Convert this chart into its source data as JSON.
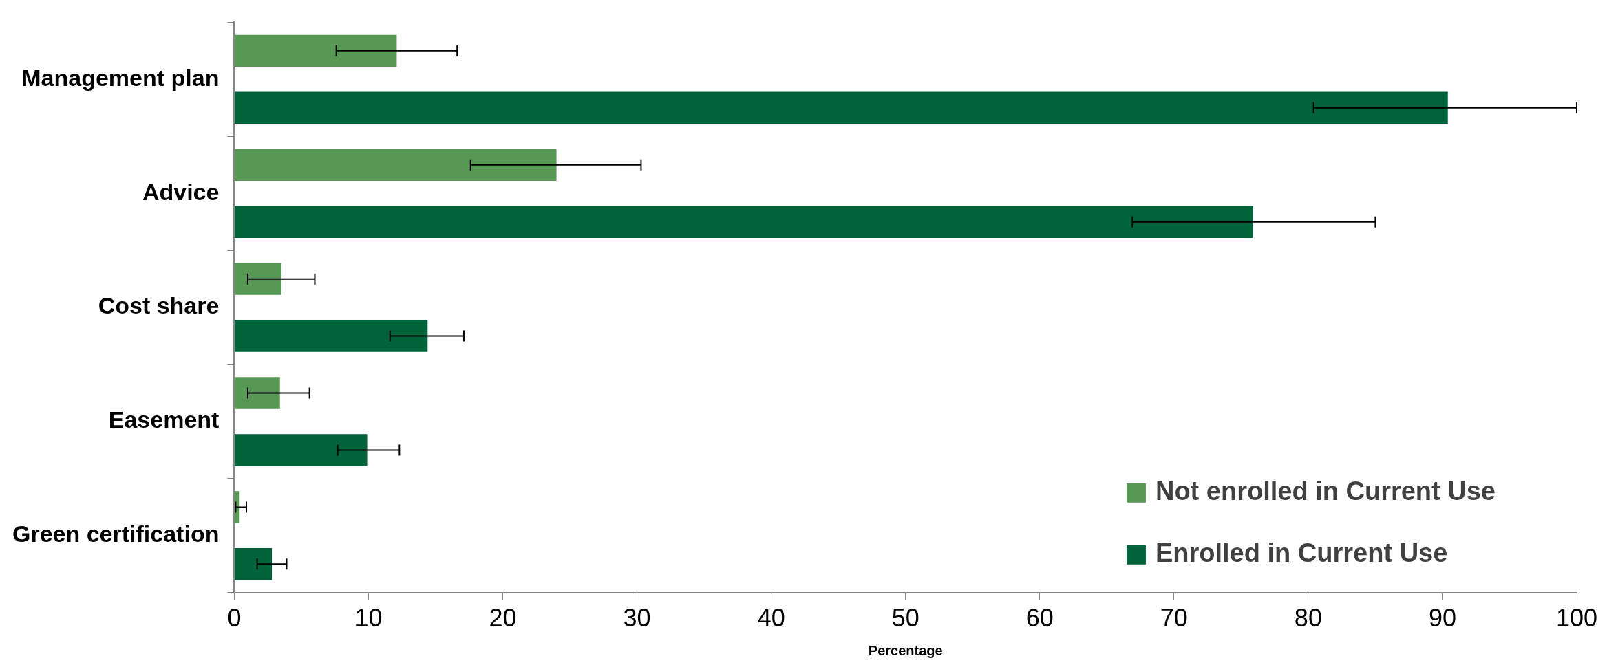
{
  "chart_data": {
    "type": "bar",
    "orientation": "horizontal",
    "xlabel": "Percentage",
    "categories": [
      "Management plan",
      "Advice",
      "Cost share",
      "Easement",
      "Green certification"
    ],
    "series": [
      {
        "name": "Not enrolled in Current Use",
        "color": "#579854",
        "values": [
          12.1,
          24.0,
          3.5,
          3.4,
          0.4
        ],
        "errors": [
          [
            7.6,
            16.6
          ],
          [
            17.6,
            30.3
          ],
          [
            1.0,
            6.0
          ],
          [
            1.0,
            5.6
          ],
          [
            0.1,
            0.9
          ]
        ]
      },
      {
        "name": "Enrolled in Current Use",
        "color": "#00633a",
        "values": [
          90.4,
          75.9,
          14.4,
          9.9,
          2.8
        ],
        "errors": [
          [
            80.4,
            100
          ],
          [
            66.9,
            85.0
          ],
          [
            11.6,
            17.1
          ],
          [
            7.7,
            12.3
          ],
          [
            1.7,
            3.9
          ]
        ]
      }
    ],
    "xlim": [
      0,
      100
    ],
    "xticks": [
      0,
      10,
      20,
      30,
      40,
      50,
      60,
      70,
      80,
      90,
      100
    ],
    "grid": false,
    "legend": "bottom right"
  }
}
